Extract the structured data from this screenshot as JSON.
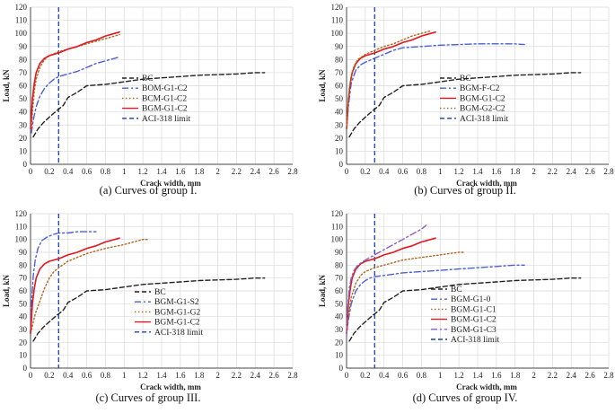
{
  "chart_data": [
    {
      "type": "line",
      "caption": "(a) Curves of group I.",
      "xlabel": "Crack width, mm",
      "ylabel": "Load, kN",
      "xlim": [
        0,
        2.8
      ],
      "ylim": [
        0,
        120
      ],
      "xticks": [
        "0",
        "0.2",
        "0.4",
        "0.6",
        "0.8",
        "1",
        "1.2",
        "1.4",
        "1.6",
        "1.8",
        "2",
        "2.2",
        "2.4",
        "2.6",
        "2.8"
      ],
      "yticks": [
        "0",
        "10",
        "20",
        "30",
        "40",
        "50",
        "60",
        "70",
        "80",
        "90",
        "100",
        "110",
        "120"
      ],
      "limit": {
        "name": "ACI-318 limit",
        "x": 0.3,
        "color": "#1f3fa8",
        "style": "dashed"
      },
      "series": [
        {
          "name": "BC",
          "color": "#222222",
          "style": "dashed",
          "x": [
            0.03,
            0.08,
            0.14,
            0.2,
            0.28,
            0.35,
            0.4,
            0.5,
            0.6,
            0.8,
            1.0,
            1.2,
            1.4,
            1.6,
            1.8,
            2.0,
            2.2,
            2.4,
            2.5
          ],
          "y": [
            21,
            27,
            32,
            36,
            41,
            45,
            51,
            55,
            60,
            61,
            63,
            65,
            66,
            67,
            68,
            68.5,
            69,
            70,
            70
          ]
        },
        {
          "name": "BOM-G1-C2",
          "color": "#4a5fd6",
          "style": "dashdot",
          "x": [
            0.01,
            0.03,
            0.06,
            0.1,
            0.15,
            0.2,
            0.25,
            0.3,
            0.4,
            0.5,
            0.6,
            0.7,
            0.8,
            0.9,
            0.95
          ],
          "y": [
            24,
            34,
            44,
            52,
            58,
            62,
            65,
            67,
            69,
            71,
            74,
            77,
            79,
            81,
            82
          ]
        },
        {
          "name": "BCM-G1-C2",
          "color": "#b5651d",
          "style": "dotted",
          "x": [
            0.01,
            0.02,
            0.04,
            0.06,
            0.1,
            0.15,
            0.2,
            0.3,
            0.4,
            0.5,
            0.6,
            0.7,
            0.8,
            0.9,
            0.95
          ],
          "y": [
            27,
            40,
            56,
            65,
            74,
            80,
            83,
            86,
            88,
            90,
            92,
            94,
            96,
            98,
            99
          ]
        },
        {
          "name": "BGM-G1-C2",
          "color": "#e0191f",
          "style": "solid",
          "x": [
            0.0,
            0.01,
            0.02,
            0.04,
            0.06,
            0.1,
            0.15,
            0.2,
            0.25,
            0.3,
            0.4,
            0.5,
            0.6,
            0.7,
            0.8,
            0.9,
            0.95
          ],
          "y": [
            27,
            37,
            50,
            62,
            70,
            77,
            81,
            83,
            84,
            85,
            88,
            90,
            93,
            95,
            98,
            100,
            101
          ]
        }
      ]
    },
    {
      "type": "line",
      "caption": "(b) Curves of group II.",
      "xlabel": "Crack width, mm",
      "ylabel": "Load, kN",
      "xlim": [
        0,
        2.8
      ],
      "ylim": [
        0,
        120
      ],
      "xticks": [
        "0",
        "0.2",
        "0.4",
        "0.6",
        "0.8",
        "1",
        "1.2",
        "1.4",
        "1.6",
        "1.8",
        "2",
        "2.2",
        "2.4",
        "2.6",
        "2.8"
      ],
      "yticks": [
        "0",
        "10",
        "20",
        "30",
        "40",
        "50",
        "60",
        "70",
        "80",
        "90",
        "100",
        "110",
        "120"
      ],
      "limit": {
        "name": "ACI-318 limit",
        "x": 0.3,
        "color": "#1f3fa8",
        "style": "dashed"
      },
      "series": [
        {
          "name": "BC",
          "color": "#222222",
          "style": "dashed",
          "x": [
            0.03,
            0.08,
            0.14,
            0.2,
            0.28,
            0.35,
            0.4,
            0.5,
            0.6,
            0.8,
            1.0,
            1.2,
            1.4,
            1.6,
            1.8,
            2.0,
            2.2,
            2.4,
            2.5
          ],
          "y": [
            21,
            27,
            32,
            36,
            41,
            45,
            51,
            55,
            60,
            61,
            63,
            65,
            66,
            67,
            68,
            68.5,
            69,
            70,
            70
          ]
        },
        {
          "name": "BGM-F-C2",
          "color": "#4a5fd6",
          "style": "dashdot",
          "x": [
            0.0,
            0.02,
            0.05,
            0.1,
            0.15,
            0.2,
            0.3,
            0.4,
            0.5,
            0.6,
            0.8,
            1.0,
            1.2,
            1.4,
            1.6,
            1.8,
            1.9
          ],
          "y": [
            27,
            45,
            62,
            72,
            76,
            78,
            81,
            84,
            87,
            89,
            90,
            91,
            91.5,
            92,
            92,
            92,
            91.5
          ]
        },
        {
          "name": "BGM-G1-C2",
          "color": "#e0191f",
          "style": "solid",
          "x": [
            0.0,
            0.01,
            0.02,
            0.04,
            0.06,
            0.1,
            0.15,
            0.2,
            0.25,
            0.3,
            0.4,
            0.5,
            0.6,
            0.7,
            0.8,
            0.9,
            0.95
          ],
          "y": [
            27,
            37,
            50,
            62,
            70,
            77,
            81,
            83,
            84,
            85,
            88,
            90,
            93,
            95,
            98,
            100,
            101
          ]
        },
        {
          "name": "BGM-G2-C2",
          "color": "#b5651d",
          "style": "dotted",
          "x": [
            0.0,
            0.01,
            0.03,
            0.05,
            0.08,
            0.12,
            0.2,
            0.3,
            0.4,
            0.5,
            0.6,
            0.7,
            0.8,
            0.9
          ],
          "y": [
            27,
            40,
            58,
            68,
            75,
            80,
            84,
            87,
            90,
            92,
            95,
            98,
            100,
            102
          ]
        }
      ]
    },
    {
      "type": "line",
      "caption": "(c) Curves of group III.",
      "xlabel": "Crack width, mm",
      "ylabel": "Load, kN",
      "xlim": [
        0,
        2.8
      ],
      "ylim": [
        0,
        120
      ],
      "xticks": [
        "0",
        "0.2",
        "0.4",
        "0.6",
        "0.8",
        "1",
        "1.2",
        "1.4",
        "1.6",
        "1.8",
        "2",
        "2.2",
        "2.4",
        "2.6",
        "2.8"
      ],
      "yticks": [
        "0",
        "10",
        "20",
        "30",
        "40",
        "50",
        "60",
        "70",
        "80",
        "90",
        "100",
        "110",
        "120"
      ],
      "limit": {
        "name": "ACI-318 limit",
        "x": 0.3,
        "color": "#1f3fa8",
        "style": "dashed"
      },
      "series": [
        {
          "name": "BC",
          "color": "#222222",
          "style": "dashed",
          "x": [
            0.03,
            0.08,
            0.14,
            0.2,
            0.28,
            0.35,
            0.4,
            0.5,
            0.6,
            0.8,
            1.0,
            1.2,
            1.4,
            1.6,
            1.8,
            2.0,
            2.2,
            2.4,
            2.5
          ],
          "y": [
            21,
            27,
            32,
            36,
            41,
            45,
            51,
            55,
            60,
            61,
            63,
            65,
            66,
            67,
            68,
            68.5,
            69,
            70,
            70
          ]
        },
        {
          "name": "BGM-G1-S2",
          "color": "#4a5fd6",
          "style": "dashdot",
          "x": [
            0.0,
            0.01,
            0.03,
            0.05,
            0.08,
            0.12,
            0.18,
            0.25,
            0.3,
            0.4,
            0.5,
            0.6,
            0.7
          ],
          "y": [
            27,
            50,
            72,
            84,
            93,
            99,
            102,
            104,
            105,
            105,
            106,
            106,
            106
          ]
        },
        {
          "name": "BGM-G1-G2",
          "color": "#b5651d",
          "style": "dotted",
          "x": [
            0.0,
            0.02,
            0.05,
            0.1,
            0.15,
            0.2,
            0.25,
            0.3,
            0.4,
            0.5,
            0.6,
            0.8,
            1.0,
            1.1,
            1.2,
            1.25
          ],
          "y": [
            27,
            33,
            42,
            52,
            62,
            70,
            75,
            78,
            83,
            86,
            89,
            93,
            96,
            98,
            100,
            100
          ]
        },
        {
          "name": "BGM-G1-C2",
          "color": "#e0191f",
          "style": "solid",
          "x": [
            0.0,
            0.01,
            0.02,
            0.04,
            0.06,
            0.1,
            0.15,
            0.2,
            0.25,
            0.3,
            0.4,
            0.5,
            0.6,
            0.7,
            0.8,
            0.9,
            0.95
          ],
          "y": [
            27,
            37,
            50,
            62,
            70,
            77,
            81,
            83,
            84,
            85,
            88,
            90,
            93,
            95,
            98,
            100,
            101
          ]
        }
      ]
    },
    {
      "type": "line",
      "caption": "(d) Curves of group IV.",
      "xlabel": "Crack width, mm",
      "ylabel": "Load, kN",
      "xlim": [
        0,
        2.8
      ],
      "ylim": [
        0,
        120
      ],
      "xticks": [
        "0",
        "0.2",
        "0.4",
        "0.6",
        "0.8",
        "1",
        "1.2",
        "1.4",
        "1.6",
        "1.8",
        "2",
        "2.2",
        "2.4",
        "2.6",
        "2.8"
      ],
      "yticks": [
        "0",
        "10",
        "20",
        "30",
        "40",
        "50",
        "60",
        "70",
        "80",
        "90",
        "100",
        "110",
        "120"
      ],
      "limit": {
        "name": "ACI-318 limit",
        "x": 0.3,
        "color": "#1f3fa8",
        "style": "dashed"
      },
      "series": [
        {
          "name": "BC",
          "color": "#222222",
          "style": "dashed",
          "x": [
            0.03,
            0.08,
            0.14,
            0.2,
            0.28,
            0.35,
            0.4,
            0.5,
            0.6,
            0.8,
            1.0,
            1.2,
            1.4,
            1.6,
            1.8,
            2.0,
            2.2,
            2.4,
            2.5
          ],
          "y": [
            21,
            27,
            32,
            36,
            41,
            45,
            51,
            55,
            60,
            61,
            63,
            65,
            66,
            67,
            68,
            68.5,
            69,
            70,
            70
          ]
        },
        {
          "name": "BGM-G1-0",
          "color": "#4a5fd6",
          "style": "dashdot",
          "x": [
            0.0,
            0.02,
            0.05,
            0.1,
            0.15,
            0.2,
            0.25,
            0.3,
            0.4,
            0.6,
            0.8,
            1.0,
            1.2,
            1.4,
            1.6,
            1.8,
            1.9
          ],
          "y": [
            27,
            38,
            50,
            60,
            65,
            68,
            70,
            71,
            72,
            74,
            75,
            76,
            77,
            78,
            79,
            80,
            80
          ]
        },
        {
          "name": "BGM-G1-C1",
          "color": "#b5651d",
          "style": "dotted",
          "x": [
            0.0,
            0.02,
            0.05,
            0.1,
            0.15,
            0.2,
            0.3,
            0.4,
            0.5,
            0.6,
            0.8,
            1.0,
            1.1,
            1.2,
            1.25
          ],
          "y": [
            27,
            40,
            55,
            66,
            72,
            75,
            78,
            80,
            82,
            84,
            86,
            88,
            89,
            90,
            90
          ]
        },
        {
          "name": "BGM-G1-C2",
          "color": "#e0191f",
          "style": "solid",
          "x": [
            0.0,
            0.01,
            0.02,
            0.04,
            0.06,
            0.1,
            0.15,
            0.2,
            0.25,
            0.3,
            0.4,
            0.5,
            0.6,
            0.7,
            0.8,
            0.9,
            0.95
          ],
          "y": [
            27,
            37,
            50,
            62,
            70,
            77,
            81,
            83,
            84,
            85,
            88,
            90,
            93,
            95,
            98,
            100,
            101
          ]
        },
        {
          "name": "BGM-G1-C3",
          "color": "#8a5fc0",
          "style": "dashdot",
          "x": [
            0.0,
            0.01,
            0.03,
            0.05,
            0.08,
            0.12,
            0.18,
            0.25,
            0.3,
            0.4,
            0.5,
            0.6,
            0.7,
            0.8,
            0.85
          ],
          "y": [
            24,
            45,
            62,
            70,
            76,
            80,
            83,
            86,
            88,
            92,
            96,
            100,
            104,
            108,
            111
          ]
        }
      ]
    }
  ]
}
